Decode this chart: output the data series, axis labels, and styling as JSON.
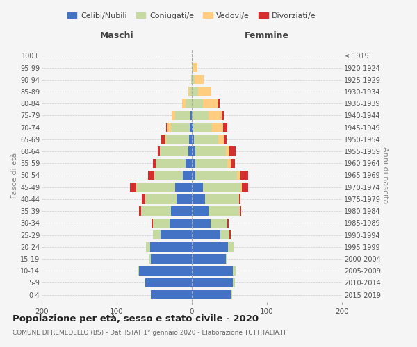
{
  "age_groups": [
    "0-4",
    "5-9",
    "10-14",
    "15-19",
    "20-24",
    "25-29",
    "30-34",
    "35-39",
    "40-44",
    "45-49",
    "50-54",
    "55-59",
    "60-64",
    "65-69",
    "70-74",
    "75-79",
    "80-84",
    "85-89",
    "90-94",
    "95-99",
    "100+"
  ],
  "birth_years": [
    "2015-2019",
    "2010-2014",
    "2005-2009",
    "2000-2004",
    "1995-1999",
    "1990-1994",
    "1985-1989",
    "1980-1984",
    "1975-1979",
    "1970-1974",
    "1965-1969",
    "1960-1964",
    "1955-1959",
    "1950-1954",
    "1945-1949",
    "1940-1944",
    "1935-1939",
    "1930-1934",
    "1925-1929",
    "1920-1924",
    "≤ 1919"
  ],
  "maschi": {
    "celibi": [
      55,
      62,
      70,
      55,
      56,
      42,
      30,
      28,
      20,
      22,
      12,
      8,
      5,
      4,
      3,
      2,
      0,
      0,
      0,
      0,
      0
    ],
    "coniugati": [
      0,
      0,
      2,
      2,
      5,
      10,
      22,
      40,
      42,
      52,
      38,
      40,
      38,
      30,
      25,
      20,
      8,
      3,
      1,
      0,
      0
    ],
    "vedovi": [
      0,
      0,
      0,
      0,
      0,
      0,
      0,
      0,
      0,
      0,
      0,
      0,
      0,
      2,
      4,
      5,
      5,
      2,
      0,
      0,
      0
    ],
    "divorziati": [
      0,
      0,
      0,
      0,
      0,
      0,
      2,
      2,
      5,
      8,
      8,
      4,
      2,
      5,
      2,
      0,
      0,
      0,
      0,
      0,
      0
    ]
  },
  "femmine": {
    "nubili": [
      52,
      55,
      55,
      45,
      48,
      38,
      25,
      22,
      18,
      15,
      5,
      5,
      5,
      3,
      2,
      0,
      0,
      0,
      0,
      0,
      0
    ],
    "coniugate": [
      2,
      2,
      3,
      2,
      8,
      12,
      22,
      42,
      45,
      50,
      55,
      42,
      40,
      32,
      25,
      22,
      15,
      8,
      4,
      2,
      0
    ],
    "vedove": [
      0,
      0,
      0,
      0,
      0,
      0,
      0,
      0,
      0,
      2,
      5,
      5,
      5,
      8,
      15,
      18,
      20,
      18,
      12,
      5,
      0
    ],
    "divorziate": [
      0,
      0,
      0,
      0,
      0,
      2,
      2,
      2,
      2,
      8,
      10,
      5,
      8,
      3,
      5,
      3,
      2,
      0,
      0,
      0,
      0
    ]
  },
  "colors": {
    "celibi": "#4472C4",
    "coniugati": "#C5D9A0",
    "vedovi": "#FFCC80",
    "divorziati": "#D32F2F"
  },
  "xlim": 200,
  "title": "Popolazione per età, sesso e stato civile - 2020",
  "subtitle": "COMUNE DI REMEDELLO (BS) - Dati ISTAT 1° gennaio 2020 - Elaborazione TUTTITALIA.IT",
  "ylabel_left": "Fasce di età",
  "ylabel_right": "Anni di nascita",
  "xlabel_left": "Maschi",
  "xlabel_right": "Femmine",
  "background_color": "#f5f5f5",
  "legend_labels": [
    "Celibi/Nubili",
    "Coniugati/e",
    "Vedovi/e",
    "Divorziati/e"
  ]
}
